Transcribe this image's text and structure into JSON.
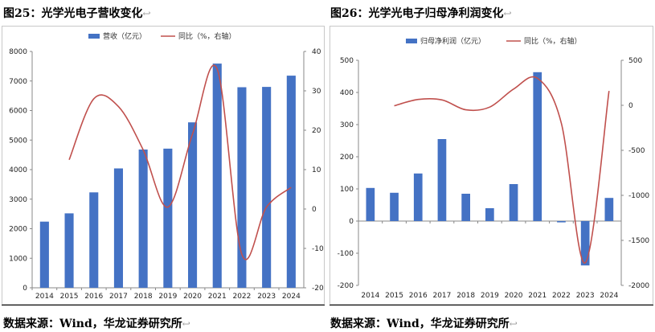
{
  "titles": {
    "left": "图25：光学光电子营收变化",
    "right": "图26：光学光电子归母净利润变化",
    "return_mark": "↩"
  },
  "sources": {
    "left": "数据来源：Wind，华龙证券研究所",
    "right": "数据来源：Wind，华龙证券研究所"
  },
  "colors": {
    "bar": "#4472C4",
    "line": "#C0504D",
    "axis": "#888888"
  },
  "chart_data": [
    {
      "type": "bar+line",
      "categories": [
        "2014",
        "2015",
        "2016",
        "2017",
        "2018",
        "2019",
        "2020",
        "2021",
        "2022",
        "2023",
        "2024"
      ],
      "series": [
        {
          "name": "营收（亿元）",
          "type": "bar",
          "axis": "left",
          "values": [
            2240,
            2520,
            3230,
            4040,
            4680,
            4710,
            5600,
            7590,
            6790,
            6800,
            7180
          ]
        },
        {
          "name": "同比（%，右轴）",
          "type": "line",
          "axis": "right",
          "values": [
            null,
            12.5,
            28.0,
            26.0,
            15.0,
            0.5,
            19.0,
            35.5,
            -11.5,
            0.5,
            5.5
          ]
        }
      ],
      "left_axis": {
        "min": 0,
        "max": 8000,
        "ticks": [
          "0",
          "1000",
          "2000",
          "3000",
          "4000",
          "5000",
          "6000",
          "7000",
          "8000"
        ]
      },
      "right_axis": {
        "min": -20,
        "max": 40,
        "ticks": [
          "-20",
          "-10",
          "0",
          "10",
          "20",
          "30",
          "40"
        ]
      },
      "legend": "top"
    },
    {
      "type": "bar+line",
      "categories": [
        "2014",
        "2015",
        "2016",
        "2017",
        "2018",
        "2019",
        "2020",
        "2021",
        "2022",
        "2023",
        "2024"
      ],
      "series": [
        {
          "name": "归母净利润（亿元）",
          "type": "bar",
          "axis": "left",
          "values": [
            103,
            88,
            148,
            255,
            85,
            40,
            115,
            463,
            -4,
            -138,
            72
          ]
        },
        {
          "name": "同比（%，右轴）",
          "type": "line",
          "axis": "right",
          "values": [
            null,
            -5,
            65,
            60,
            -50,
            -20,
            180,
            300,
            -200,
            -1750,
            160
          ]
        }
      ],
      "left_axis": {
        "min": -200,
        "max": 500,
        "ticks": [
          "-200",
          "-100",
          "0",
          "100",
          "200",
          "300",
          "400",
          "500"
        ]
      },
      "right_axis": {
        "min": -2000,
        "max": 500,
        "ticks": [
          "-2000",
          "-1500",
          "-1000",
          "-500",
          "0",
          "500"
        ]
      },
      "legend": "top"
    }
  ]
}
